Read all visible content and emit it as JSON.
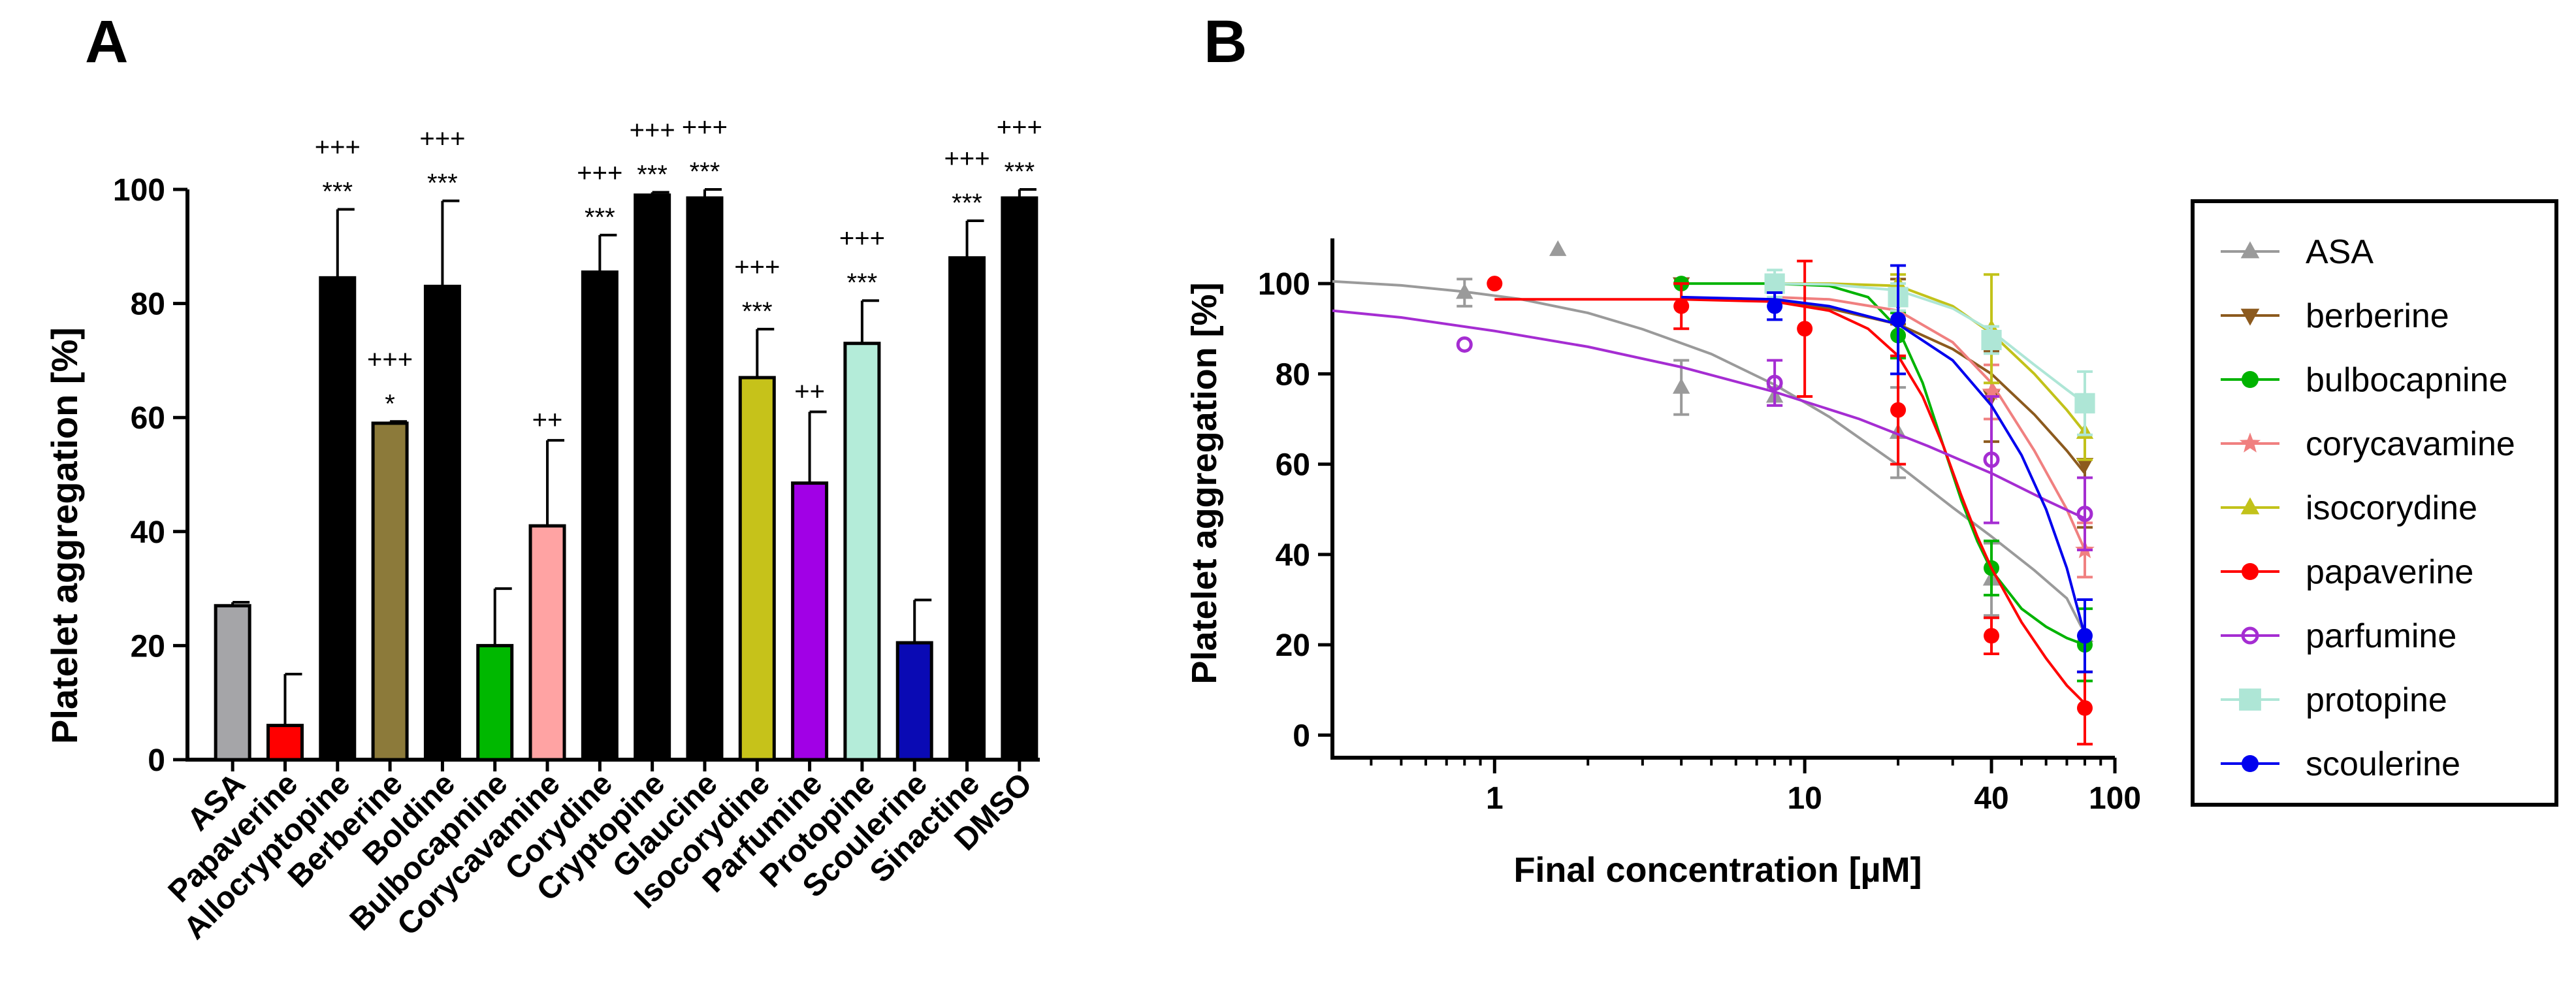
{
  "chart_data": [
    {
      "panel": "A",
      "type": "bar",
      "title": "",
      "xlabel": "",
      "ylabel": "Platelet aggregation [%]",
      "ylim": [
        0,
        100
      ],
      "yticks": [
        0,
        20,
        40,
        60,
        80,
        100
      ],
      "categories": [
        "ASA",
        "Papaverine",
        "Allocryptopine",
        "Berberine",
        "Boldine",
        "Bulbocapnine",
        "Corycavamine",
        "Corydine",
        "Cryptopine",
        "Glaucine",
        "Isocorydine",
        "Parfumine",
        "Protopine",
        "Scoulerine",
        "Sinactine",
        "DMSO"
      ],
      "values": [
        27,
        6,
        84.5,
        59,
        83,
        20,
        41,
        85.5,
        99,
        98.5,
        67,
        48.5,
        73,
        20.5,
        88,
        98.5
      ],
      "errors": [
        0.6,
        9,
        12,
        0.3,
        15,
        10,
        15,
        6.5,
        0.5,
        1.5,
        8.5,
        12.5,
        7.5,
        7.5,
        6.5,
        1.5
      ],
      "colors": [
        "#a5a5a8",
        "#ff0000",
        "#000000",
        "#8c7a3a",
        "#000000",
        "#00b800",
        "#ffa3a3",
        "#000000",
        "#000000",
        "#000000",
        "#c6c21a",
        "#a100e6",
        "#b4ecd9",
        "#0a0ab4",
        "#000000",
        "#000000"
      ],
      "significance_stars": [
        "",
        "",
        "***",
        "*",
        "***",
        "",
        "",
        "***",
        "***",
        "***",
        "***",
        "",
        "***",
        "",
        "***",
        "***"
      ],
      "significance_plus": [
        "",
        "",
        "+++",
        "+++",
        "+++",
        "",
        "++",
        "+++",
        "+++",
        "+++",
        "+++",
        "++",
        "+++",
        "",
        "+++",
        "+++"
      ]
    },
    {
      "panel": "B",
      "type": "line",
      "title": "",
      "xlabel": "Final concentration [µM]",
      "ylabel": "Platelet aggregation [%]",
      "xscale": "log",
      "xlim": [
        0.3,
        100
      ],
      "ylim": [
        -5,
        110
      ],
      "xticks": [
        1,
        10,
        40,
        100
      ],
      "yticks": [
        0,
        20,
        40,
        60,
        80,
        100
      ],
      "legend_position": "right",
      "series": [
        {
          "name": "ASA",
          "color": "#9a9a9a",
          "marker": "triangle",
          "x": [
            0.8,
            1.6,
            4,
            8,
            20,
            40,
            80
          ],
          "y": [
            98,
            107.5,
            77,
            75,
            67,
            34.5,
            22
          ],
          "err": [
            3,
            0,
            6,
            2,
            10,
            8,
            8
          ],
          "fit_x": [
            0.3,
            0.5,
            0.8,
            1.2,
            2,
            3,
            5,
            8,
            12,
            20,
            30,
            40,
            55,
            70,
            80
          ],
          "fit_y": [
            100.5,
            99.6,
            98.2,
            96.6,
            93.5,
            89.9,
            84.4,
            77.6,
            70.5,
            59.8,
            50.4,
            44,
            36.5,
            30.3,
            22.5
          ]
        },
        {
          "name": "berberine",
          "color": "#8c5a1e",
          "marker": "triangle-down",
          "x": [
            4,
            20,
            40,
            80
          ],
          "y": [
            100,
            96,
            75,
            60
          ],
          "err": [
            0,
            5,
            10,
            14
          ],
          "fit_x": [
            4,
            8,
            12,
            20,
            30,
            40,
            55,
            70,
            80
          ],
          "fit_y": [
            97,
            96,
            94.5,
            91,
            85.5,
            80,
            71,
            63,
            58
          ]
        },
        {
          "name": "bulbocapnine",
          "color": "#00b300",
          "marker": "circle",
          "x": [
            4,
            20,
            40,
            80
          ],
          "y": [
            100,
            88.5,
            37,
            20
          ],
          "err": [
            0,
            5,
            6,
            8
          ],
          "fit_x": [
            4,
            8,
            12,
            16,
            20,
            24,
            28,
            32,
            36,
            40,
            50,
            60,
            70,
            80
          ],
          "fit_y": [
            100,
            100,
            99.5,
            97,
            90,
            78,
            64,
            52,
            43,
            36.5,
            28,
            24,
            21.5,
            20
          ]
        },
        {
          "name": "corycavamine",
          "color": "#f08080",
          "marker": "star",
          "x": [
            40,
            80
          ],
          "y": [
            76,
            41
          ],
          "err": [
            6,
            6
          ],
          "fit_x": [
            8,
            12,
            20,
            30,
            40,
            55,
            70,
            80
          ],
          "fit_y": [
            97,
            96.5,
            94,
            87,
            78,
            63,
            50,
            41
          ]
        },
        {
          "name": "isocorydine",
          "color": "#c2c21a",
          "marker": "triangle",
          "x": [
            20,
            40,
            80
          ],
          "y": [
            100,
            90,
            67
          ],
          "err": [
            2,
            12,
            6
          ],
          "fit_x": [
            8,
            12,
            20,
            30,
            40,
            55,
            70,
            80
          ],
          "fit_y": [
            100,
            100,
            99.5,
            95,
            89,
            80,
            72,
            67
          ]
        },
        {
          "name": "papaverine",
          "color": "#ff0000",
          "marker": "circle",
          "x": [
            1,
            4,
            10,
            20,
            40,
            80
          ],
          "y": [
            100,
            95,
            90,
            72,
            22,
            6
          ],
          "err": [
            0,
            5,
            15,
            12,
            4,
            8
          ],
          "fit_x": [
            1,
            2,
            4,
            8,
            12,
            16,
            20,
            24,
            28,
            32,
            36,
            40,
            50,
            60,
            70,
            80
          ],
          "fit_y": [
            96.5,
            96.5,
            96.5,
            96,
            94,
            90,
            84,
            75,
            64,
            53,
            44,
            37,
            25,
            17,
            11,
            7
          ]
        },
        {
          "name": "parfumine",
          "color": "#a52dd2",
          "marker": "circle-open",
          "x": [
            0.8,
            8,
            40,
            80
          ],
          "y": [
            86.5,
            78,
            61,
            49
          ],
          "err": [
            0,
            5,
            14,
            8
          ],
          "fit_x": [
            0.3,
            0.5,
            1,
            2,
            4,
            8,
            15,
            25,
            40,
            60,
            80
          ],
          "fit_y": [
            94,
            92.5,
            89.5,
            86,
            81.5,
            76,
            70,
            64,
            58,
            52,
            48
          ]
        },
        {
          "name": "protopine",
          "color": "#aee6d6",
          "marker": "square",
          "x": [
            8,
            20,
            40,
            80
          ],
          "y": [
            100,
            97,
            87.5,
            73.5
          ],
          "err": [
            3,
            3,
            3,
            7
          ],
          "fit_x": [
            8,
            12,
            20,
            30,
            40,
            55,
            70,
            80
          ],
          "fit_y": [
            100,
            99.8,
            98.5,
            94.5,
            89.5,
            82,
            76.5,
            73.5
          ]
        },
        {
          "name": "scoulerine",
          "color": "#0000ee",
          "marker": "circle",
          "x": [
            8,
            20,
            80
          ],
          "y": [
            95,
            92,
            22
          ],
          "err": [
            3,
            12,
            8
          ],
          "fit_x": [
            4,
            8,
            12,
            20,
            30,
            40,
            50,
            60,
            70,
            80
          ],
          "fit_y": [
            97,
            96.5,
            95,
            91,
            83,
            73,
            62,
            50,
            37,
            22
          ]
        }
      ]
    }
  ]
}
